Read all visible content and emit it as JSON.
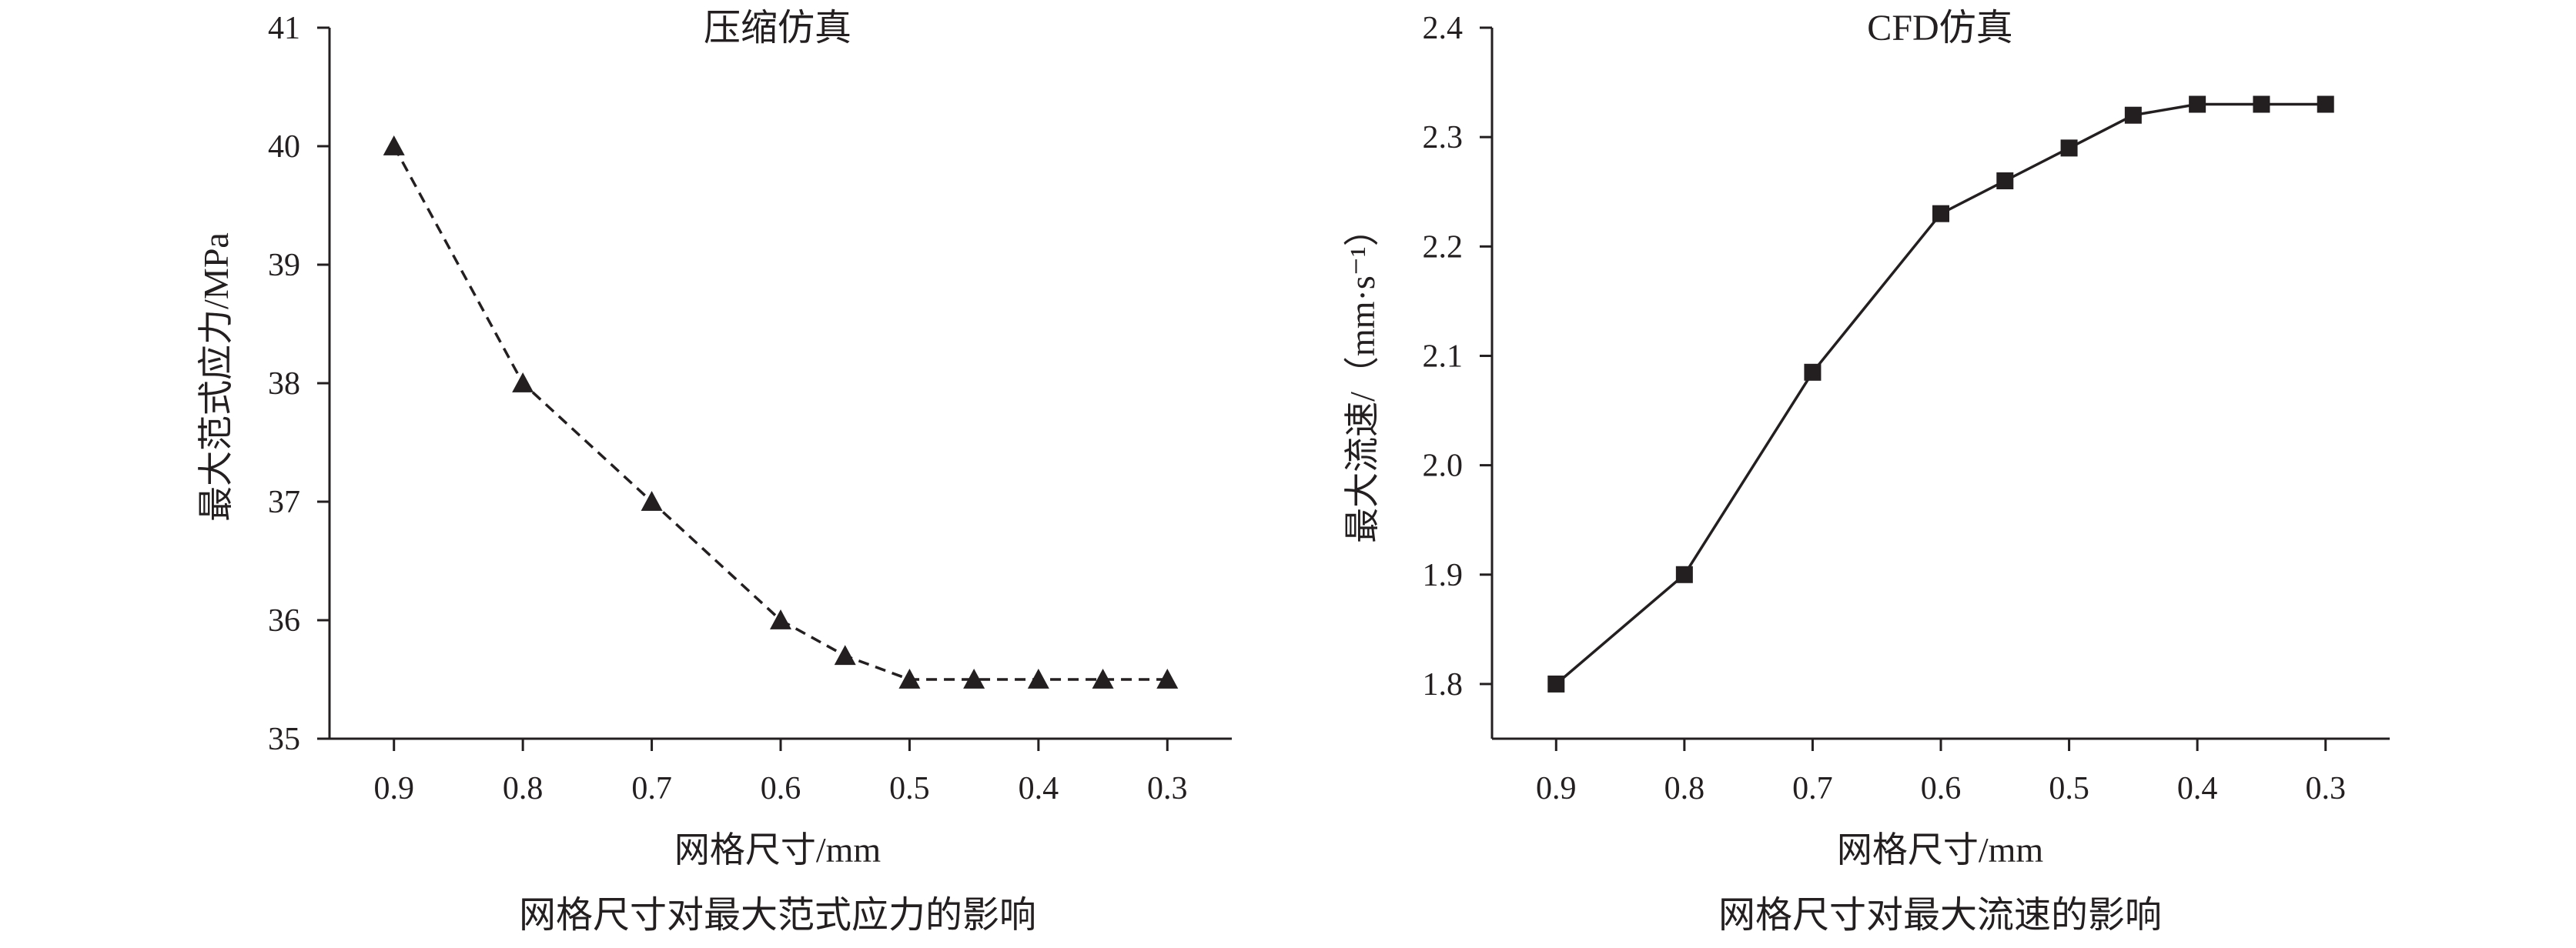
{
  "chart_data": [
    {
      "type": "line",
      "title": "压缩仿真",
      "xlabel": "网格尺寸/mm",
      "ylabel": "最大范式应力/MPa",
      "caption": "网格尺寸对最大范式应力的影响",
      "x_ticks": [
        "0.9",
        "0.8",
        "0.7",
        "0.6",
        "0.5",
        "0.4",
        "0.3"
      ],
      "y_ticks": [
        "35",
        "36",
        "37",
        "38",
        "39",
        "40",
        "41"
      ],
      "xlim": [
        0.95,
        0.25
      ],
      "ylim": [
        35,
        41
      ],
      "x_reversed": true,
      "grid": false,
      "series": [
        {
          "line_style": "dashed",
          "marker": "triangle",
          "color": "#231f20",
          "x": [
            0.9,
            0.8,
            0.7,
            0.6,
            0.55,
            0.5,
            0.45,
            0.4,
            0.35,
            0.3
          ],
          "y": [
            40.0,
            38.0,
            37.0,
            36.0,
            35.7,
            35.5,
            35.5,
            35.5,
            35.5,
            35.5
          ]
        }
      ]
    },
    {
      "type": "line",
      "title": "CFD仿真",
      "xlabel": "网格尺寸/mm",
      "ylabel": "最大流速/（mm·s⁻¹）",
      "caption": "网格尺寸对最大流速的影响",
      "x_ticks": [
        "0.9",
        "0.8",
        "0.7",
        "0.6",
        "0.5",
        "0.4",
        "0.3"
      ],
      "y_ticks": [
        "1.8",
        "1.9",
        "2.0",
        "2.1",
        "2.2",
        "2.3",
        "2.4"
      ],
      "xlim": [
        0.95,
        0.25
      ],
      "ylim": [
        1.75,
        2.4
      ],
      "x_reversed": true,
      "grid": false,
      "series": [
        {
          "line_style": "solid",
          "marker": "square",
          "color": "#231f20",
          "x": [
            0.9,
            0.8,
            0.7,
            0.6,
            0.55,
            0.5,
            0.45,
            0.4,
            0.35,
            0.3
          ],
          "y": [
            1.8,
            1.9,
            2.085,
            2.23,
            2.26,
            2.29,
            2.32,
            2.33,
            2.33,
            2.33
          ]
        }
      ]
    }
  ]
}
